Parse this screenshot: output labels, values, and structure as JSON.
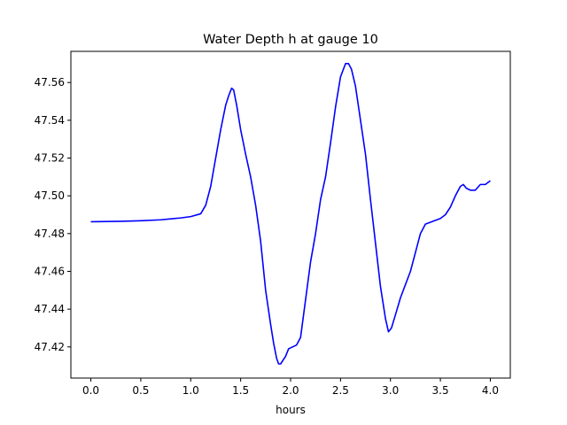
{
  "chart_data": {
    "type": "line",
    "title": "Water Depth h at gauge 10",
    "xlabel": "hours",
    "ylabel": "",
    "xlim": [
      -0.2,
      4.2
    ],
    "ylim": [
      47.4035,
      47.5765
    ],
    "xticks": [
      0.0,
      0.5,
      1.0,
      1.5,
      2.0,
      2.5,
      3.0,
      3.5,
      4.0
    ],
    "xtick_labels": [
      "0.0",
      "0.5",
      "1.0",
      "1.5",
      "2.0",
      "2.5",
      "3.0",
      "3.5",
      "4.0"
    ],
    "yticks": [
      47.42,
      47.44,
      47.46,
      47.48,
      47.5,
      47.52,
      47.54,
      47.56
    ],
    "ytick_labels": [
      "47.42",
      "47.44",
      "47.46",
      "47.48",
      "47.50",
      "47.52",
      "47.54",
      "47.56"
    ],
    "grid": false,
    "line_color": "#0000ff",
    "series": [
      {
        "x": [
          0.0,
          0.3,
          0.5,
          0.7,
          0.8,
          0.9,
          1.0,
          1.1,
          1.15,
          1.2,
          1.25,
          1.3,
          1.35,
          1.38,
          1.41,
          1.43,
          1.46,
          1.5,
          1.55,
          1.6,
          1.65,
          1.7,
          1.75,
          1.8,
          1.83,
          1.86,
          1.88,
          1.9,
          1.95,
          1.98,
          2.02,
          2.06,
          2.1,
          2.15,
          2.2,
          2.25,
          2.3,
          2.35,
          2.4,
          2.45,
          2.5,
          2.55,
          2.58,
          2.61,
          2.65,
          2.7,
          2.75,
          2.8,
          2.85,
          2.9,
          2.95,
          2.98,
          3.01,
          3.05,
          3.1,
          3.15,
          3.2,
          3.25,
          3.3,
          3.35,
          3.4,
          3.45,
          3.5,
          3.55,
          3.6,
          3.65,
          3.7,
          3.73,
          3.76,
          3.8,
          3.85,
          3.9,
          3.95,
          4.0
        ],
        "y": [
          47.4863,
          47.4865,
          47.4868,
          47.4873,
          47.4878,
          47.4883,
          47.489,
          47.4905,
          47.495,
          47.505,
          47.52,
          47.535,
          47.548,
          47.553,
          47.557,
          47.556,
          47.548,
          47.535,
          47.522,
          47.51,
          47.495,
          47.476,
          47.45,
          47.432,
          47.422,
          47.414,
          47.411,
          47.411,
          47.415,
          47.419,
          47.42,
          47.421,
          47.425,
          47.445,
          47.465,
          47.48,
          47.498,
          47.51,
          47.528,
          47.547,
          47.563,
          47.57,
          47.57,
          47.567,
          47.558,
          47.54,
          47.522,
          47.498,
          47.475,
          47.452,
          47.435,
          47.428,
          47.43,
          47.437,
          47.446,
          47.453,
          47.46,
          47.47,
          47.48,
          47.485,
          47.486,
          47.487,
          47.488,
          47.49,
          47.494,
          47.5,
          47.505,
          47.506,
          47.504,
          47.503,
          47.503,
          47.506,
          47.506,
          47.508
        ]
      }
    ]
  }
}
